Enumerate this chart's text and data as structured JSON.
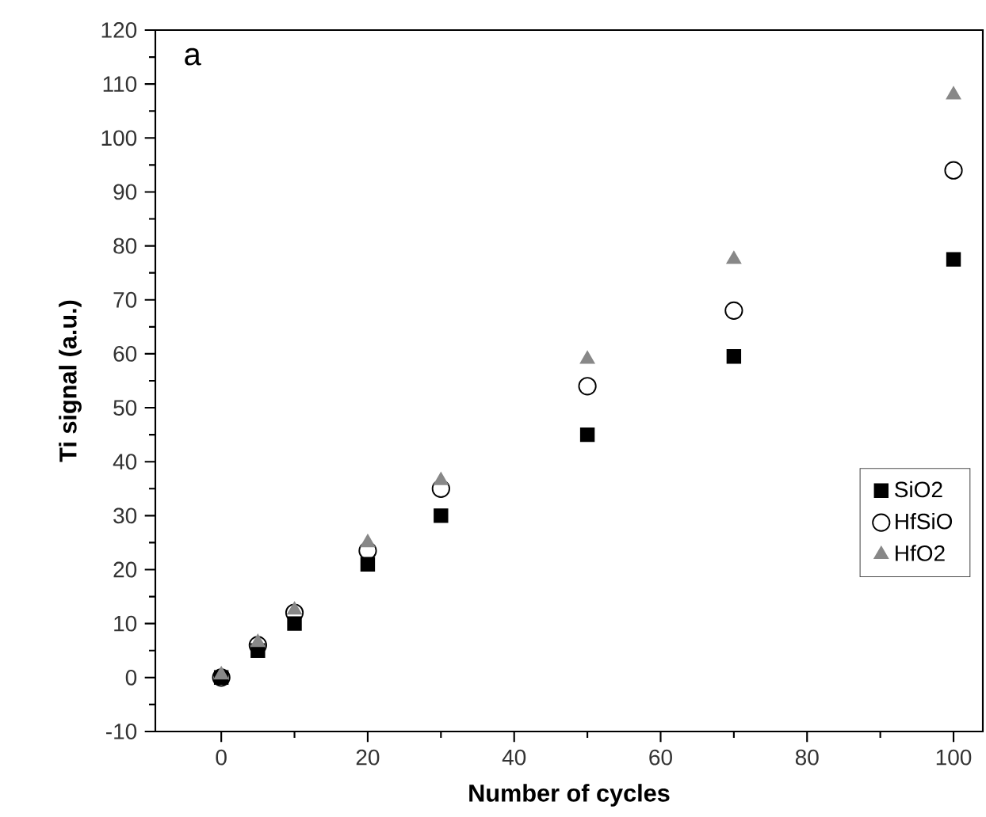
{
  "chart_data": {
    "type": "scatter",
    "xlabel": "Number of cycles",
    "ylabel": "Ti signal (a.u.)",
    "annotations": [
      "a"
    ],
    "x": [
      0,
      5,
      10,
      20,
      30,
      50,
      70,
      100
    ],
    "series": [
      {
        "name": "SiO2",
        "color": "#000000",
        "marker": "square",
        "values": [
          0,
          5,
          10,
          21,
          30,
          45,
          59.5,
          77.5
        ]
      },
      {
        "name": "HfSiO",
        "color": "#000000",
        "marker": "circle",
        "values": [
          0,
          6,
          12,
          23.5,
          35,
          54,
          68,
          94
        ]
      },
      {
        "name": "HfO2",
        "color": "#888888",
        "marker": "triangle",
        "values": [
          0.5,
          6.5,
          12.5,
          25,
          36.5,
          59,
          77.5,
          108
        ]
      }
    ],
    "xlim": [
      -9,
      104
    ],
    "ylim": [
      -10,
      120
    ],
    "xticks": [
      0,
      20,
      40,
      60,
      80,
      100
    ],
    "yticks": [
      -10,
      0,
      10,
      20,
      30,
      40,
      50,
      60,
      70,
      80,
      90,
      100,
      110,
      120
    ],
    "legend": "bottom right",
    "grid": false
  }
}
